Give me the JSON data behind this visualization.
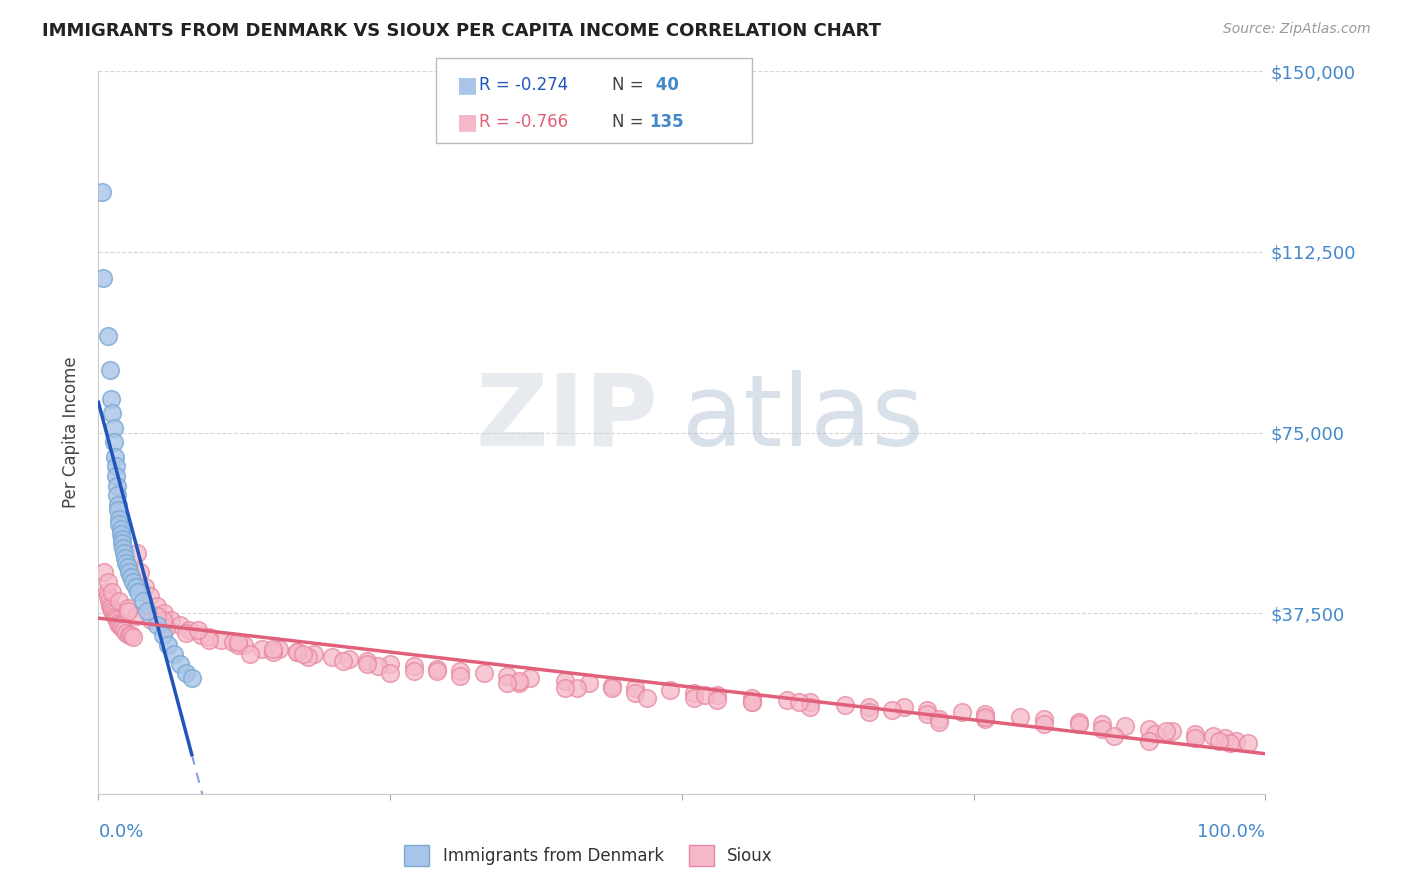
{
  "title": "IMMIGRANTS FROM DENMARK VS SIOUX PER CAPITA INCOME CORRELATION CHART",
  "source": "Source: ZipAtlas.com",
  "ylabel": "Per Capita Income",
  "xlim": [
    0,
    1.0
  ],
  "ylim": [
    0,
    150000
  ],
  "yticks": [
    0,
    37500,
    75000,
    112500,
    150000
  ],
  "ytick_labels": [
    "",
    "$37,500",
    "$75,000",
    "$112,500",
    "$150,000"
  ],
  "blue_color": "#a8c4e8",
  "blue_edge": "#7aaad4",
  "blue_line_color": "#2255bb",
  "pink_color": "#f5b8c8",
  "pink_edge": "#e888a0",
  "pink_line_color": "#e0607a",
  "watermark_zip_color": "#d0d8e0",
  "watermark_atlas_color": "#aabcd0",
  "background_color": "#ffffff",
  "grid_color": "#cccccc",
  "title_color": "#222222",
  "axis_label_color": "#444444",
  "tick_label_color": "#4488cc",
  "source_color": "#999999",
  "denmark_x": [
    0.003,
    0.004,
    0.008,
    0.01,
    0.011,
    0.012,
    0.013,
    0.013,
    0.014,
    0.015,
    0.015,
    0.016,
    0.016,
    0.017,
    0.017,
    0.018,
    0.018,
    0.019,
    0.019,
    0.02,
    0.02,
    0.021,
    0.022,
    0.023,
    0.024,
    0.025,
    0.026,
    0.028,
    0.03,
    0.032,
    0.034,
    0.038,
    0.042,
    0.05,
    0.055,
    0.06,
    0.065,
    0.07,
    0.075,
    0.08
  ],
  "denmark_y": [
    125000,
    107000,
    95000,
    88000,
    82000,
    79000,
    76000,
    73000,
    70000,
    68000,
    66000,
    64000,
    62000,
    60000,
    59000,
    57000,
    56000,
    55000,
    54000,
    53000,
    52000,
    51000,
    50000,
    49000,
    48000,
    47000,
    46000,
    45000,
    44000,
    43000,
    42000,
    40000,
    38000,
    35000,
    33000,
    31000,
    29000,
    27000,
    25000,
    24000
  ],
  "sioux_x": [
    0.005,
    0.007,
    0.008,
    0.009,
    0.01,
    0.011,
    0.012,
    0.013,
    0.014,
    0.015,
    0.016,
    0.017,
    0.018,
    0.019,
    0.02,
    0.022,
    0.024,
    0.026,
    0.028,
    0.03,
    0.033,
    0.036,
    0.04,
    0.044,
    0.05,
    0.056,
    0.062,
    0.07,
    0.078,
    0.088,
    0.095,
    0.105,
    0.115,
    0.125,
    0.14,
    0.155,
    0.17,
    0.185,
    0.2,
    0.215,
    0.23,
    0.25,
    0.27,
    0.29,
    0.31,
    0.33,
    0.35,
    0.37,
    0.4,
    0.42,
    0.44,
    0.46,
    0.49,
    0.51,
    0.53,
    0.56,
    0.59,
    0.61,
    0.64,
    0.66,
    0.69,
    0.71,
    0.74,
    0.76,
    0.79,
    0.81,
    0.84,
    0.86,
    0.88,
    0.9,
    0.92,
    0.94,
    0.955,
    0.965,
    0.975,
    0.985,
    0.008,
    0.012,
    0.018,
    0.025,
    0.032,
    0.045,
    0.058,
    0.075,
    0.095,
    0.12,
    0.15,
    0.18,
    0.21,
    0.24,
    0.27,
    0.31,
    0.36,
    0.41,
    0.46,
    0.51,
    0.56,
    0.61,
    0.66,
    0.71,
    0.76,
    0.81,
    0.86,
    0.905,
    0.94,
    0.97,
    0.025,
    0.055,
    0.085,
    0.12,
    0.17,
    0.23,
    0.29,
    0.36,
    0.44,
    0.52,
    0.6,
    0.68,
    0.76,
    0.84,
    0.915,
    0.96,
    0.05,
    0.13,
    0.25,
    0.4,
    0.56,
    0.72,
    0.87,
    0.175,
    0.35,
    0.53,
    0.72,
    0.9,
    0.15,
    0.47
  ],
  "sioux_y": [
    46000,
    42000,
    41000,
    40000,
    39000,
    38500,
    38000,
    37500,
    37000,
    36500,
    36000,
    35500,
    35000,
    35000,
    34500,
    34000,
    33500,
    33000,
    33000,
    32500,
    50000,
    46000,
    43000,
    41000,
    39000,
    37500,
    36000,
    35000,
    34000,
    33000,
    32500,
    32000,
    31500,
    31000,
    30000,
    30000,
    29500,
    29000,
    28500,
    28000,
    27500,
    27000,
    26500,
    26000,
    25500,
    25000,
    24500,
    24000,
    23500,
    23000,
    22500,
    22000,
    21500,
    21000,
    20500,
    20000,
    19500,
    19000,
    18500,
    18000,
    18000,
    17500,
    17000,
    16500,
    16000,
    15500,
    15000,
    14500,
    14000,
    13500,
    13000,
    12500,
    12000,
    11500,
    11000,
    10500,
    44000,
    42000,
    40000,
    38500,
    37000,
    36000,
    34500,
    33500,
    32000,
    31000,
    29500,
    28500,
    27500,
    26500,
    25500,
    24500,
    23000,
    22000,
    21000,
    20000,
    19000,
    18000,
    17000,
    16500,
    15500,
    14500,
    13500,
    12500,
    11500,
    10500,
    38000,
    36000,
    34000,
    31500,
    29500,
    27000,
    25500,
    23500,
    22000,
    20500,
    19000,
    17500,
    16000,
    14500,
    13000,
    11000,
    37000,
    29000,
    25000,
    22000,
    19000,
    15500,
    12000,
    29000,
    23000,
    19500,
    15000,
    11000,
    30000,
    20000
  ]
}
